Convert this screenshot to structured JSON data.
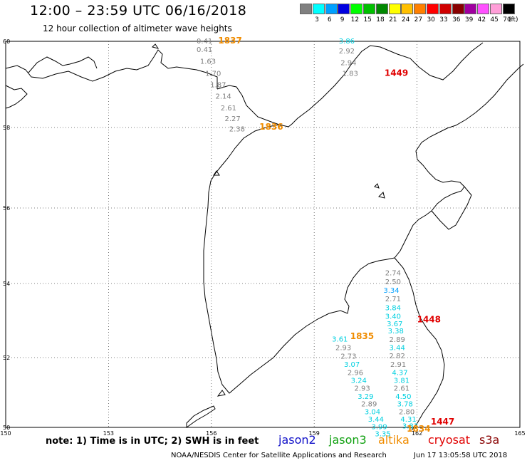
{
  "header": {
    "title": "12:00 – 23:59 UTC 06/16/2018",
    "subtitle": "12 hour collection of altimeter wave heights"
  },
  "legend": {
    "unit": "(ft)",
    "bins": [
      {
        "label": "3",
        "color": "#808080"
      },
      {
        "label": "6",
        "color": "#00ffff"
      },
      {
        "label": "9",
        "color": "#00a0ff"
      },
      {
        "label": "12",
        "color": "#0000e0"
      },
      {
        "label": "15",
        "color": "#00ff00"
      },
      {
        "label": "18",
        "color": "#00c000"
      },
      {
        "label": "21",
        "color": "#008800"
      },
      {
        "label": "24",
        "color": "#ffff00"
      },
      {
        "label": "27",
        "color": "#ffc000"
      },
      {
        "label": "30",
        "color": "#ff8000"
      },
      {
        "label": "33",
        "color": "#ff0000"
      },
      {
        "label": "36",
        "color": "#d00000"
      },
      {
        "label": "39",
        "color": "#880000"
      },
      {
        "label": "42",
        "color": "#a000a0"
      },
      {
        "label": "45",
        "color": "#ff50ff"
      },
      {
        "label": "70",
        "color": "#ff9ed8"
      },
      {
        "label": "",
        "color": "#000000"
      }
    ]
  },
  "map": {
    "lat_ticks": [
      "60",
      "58",
      "56",
      "54",
      "52",
      "50"
    ],
    "lon_ticks": [
      "150",
      "153",
      "156",
      "159",
      "162",
      "165"
    ],
    "extent": {
      "lon": [
        150,
        165
      ],
      "lat": [
        50,
        60
      ]
    }
  },
  "tracks": [
    {
      "satellite": "altika",
      "pass_time": "1837",
      "color": "#808080",
      "label_color": "#f08c00",
      "label_lon": 156.2,
      "label_lat": 59.95,
      "points": [
        {
          "lon": 155.8,
          "lat": 59.95,
          "value": "0.41"
        },
        {
          "lon": 155.8,
          "lat": 59.75,
          "value": "0.41"
        },
        {
          "lon": 155.9,
          "lat": 59.48,
          "value": "1.63"
        },
        {
          "lon": 156.05,
          "lat": 59.2,
          "value": "1.70"
        },
        {
          "lon": 156.2,
          "lat": 58.93,
          "value": "1.87"
        },
        {
          "lon": 156.35,
          "lat": 58.67,
          "value": "2.14"
        },
        {
          "lon": 156.5,
          "lat": 58.4,
          "value": "2.61"
        },
        {
          "lon": 156.62,
          "lat": 58.15,
          "value": "2.27"
        },
        {
          "lon": 156.75,
          "lat": 57.9,
          "value": "2.38"
        }
      ]
    },
    {
      "satellite": "altika",
      "pass_time": "1836",
      "color": "#808080",
      "label_color": "#f08c00",
      "label_lon": 157.4,
      "label_lat": 57.95,
      "points": []
    },
    {
      "satellite": "cryosat",
      "pass_time": "1449",
      "color": "#808080",
      "label_color": "#e00000",
      "label_lon": 161.05,
      "label_lat": 59.2,
      "points": [
        {
          "lon": 159.95,
          "lat": 59.95,
          "value": "3.86",
          "color": "#00d0e0"
        },
        {
          "lon": 159.95,
          "lat": 59.72,
          "value": "2.92"
        },
        {
          "lon": 160.0,
          "lat": 59.45,
          "value": "2.94"
        },
        {
          "lon": 160.05,
          "lat": 59.2,
          "value": "1.83"
        }
      ]
    },
    {
      "satellite": "cryosat",
      "pass_time": "1448",
      "color": "#00d0e0",
      "label_color": "#e00000",
      "label_lon": 162.0,
      "label_lat": 52.95,
      "points": [
        {
          "lon": 161.3,
          "lat": 54.22,
          "value": "2.74",
          "color": "#808080"
        },
        {
          "lon": 161.3,
          "lat": 53.98,
          "value": "2.50",
          "color": "#808080"
        },
        {
          "lon": 161.25,
          "lat": 53.75,
          "value": "3.34",
          "color": "#00a0ff"
        },
        {
          "lon": 161.3,
          "lat": 53.52,
          "value": "2.71",
          "color": "#808080"
        },
        {
          "lon": 161.3,
          "lat": 53.28,
          "value": "3.84"
        },
        {
          "lon": 161.3,
          "lat": 53.05,
          "value": "3.40"
        },
        {
          "lon": 161.35,
          "lat": 52.85,
          "value": "3.67"
        },
        {
          "lon": 161.38,
          "lat": 52.65,
          "value": "3.38"
        },
        {
          "lon": 161.42,
          "lat": 52.42,
          "value": "2.89",
          "color": "#808080"
        },
        {
          "lon": 161.42,
          "lat": 52.2,
          "value": "3.44"
        },
        {
          "lon": 161.42,
          "lat": 51.98,
          "value": "2.82",
          "color": "#808080"
        },
        {
          "lon": 161.45,
          "lat": 51.73,
          "value": "2.91",
          "color": "#808080"
        },
        {
          "lon": 161.5,
          "lat": 51.5,
          "value": "4.37"
        },
        {
          "lon": 161.55,
          "lat": 51.28,
          "value": "3.81"
        },
        {
          "lon": 161.55,
          "lat": 51.05,
          "value": "2.61",
          "color": "#808080"
        },
        {
          "lon": 161.6,
          "lat": 50.82,
          "value": "4.50"
        },
        {
          "lon": 161.65,
          "lat": 50.6,
          "value": "3.78"
        },
        {
          "lon": 161.7,
          "lat": 50.38,
          "value": "2.80",
          "color": "#808080"
        },
        {
          "lon": 161.75,
          "lat": 50.16,
          "value": "4.31"
        },
        {
          "lon": 161.8,
          "lat": 49.97,
          "value": "3.83"
        }
      ]
    },
    {
      "satellite": "cryosat",
      "pass_time": "1447",
      "color": "#e00000",
      "label_color": "#e00000",
      "label_lon": 162.4,
      "label_lat": 50.08,
      "points": []
    },
    {
      "satellite": "altika",
      "pass_time": "1835",
      "color": "#00d0e0",
      "label_color": "#f08c00",
      "label_lon": 160.05,
      "label_lat": 52.5,
      "points": [
        {
          "lon": 159.75,
          "lat": 52.43,
          "value": "3.61"
        },
        {
          "lon": 159.85,
          "lat": 52.2,
          "value": "2.93",
          "color": "#808080"
        },
        {
          "lon": 160.0,
          "lat": 51.97,
          "value": "2.73",
          "color": "#808080"
        },
        {
          "lon": 160.1,
          "lat": 51.73,
          "value": "3.07"
        },
        {
          "lon": 160.2,
          "lat": 51.5,
          "value": "2.96",
          "color": "#808080"
        },
        {
          "lon": 160.3,
          "lat": 51.28,
          "value": "3.24"
        },
        {
          "lon": 160.4,
          "lat": 51.05,
          "value": "2.93",
          "color": "#808080"
        },
        {
          "lon": 160.5,
          "lat": 50.82,
          "value": "3.29"
        },
        {
          "lon": 160.6,
          "lat": 50.6,
          "value": "2.89",
          "color": "#808080"
        },
        {
          "lon": 160.7,
          "lat": 50.38,
          "value": "3.04"
        },
        {
          "lon": 160.8,
          "lat": 50.16,
          "value": "3.44"
        },
        {
          "lon": 160.9,
          "lat": 49.95,
          "value": "3.99"
        },
        {
          "lon": 161.0,
          "lat": 49.75,
          "value": "3.35"
        }
      ]
    },
    {
      "satellite": "altika",
      "pass_time": "1834",
      "color": "#f08c00",
      "label_color": "#f08c00",
      "label_lon": 161.7,
      "label_lat": 49.88,
      "points": []
    }
  ],
  "footer": {
    "note": "note: 1) Time is in UTC; 2) SWH is in feet",
    "satellites": [
      "jason2",
      "jason3",
      "altika",
      "cryosat",
      "s3a"
    ],
    "credit": "NOAA/NESDIS Center for Satellite Applications and Research",
    "timestamp": "Jun 17 13:05:58 UTC 2018"
  }
}
